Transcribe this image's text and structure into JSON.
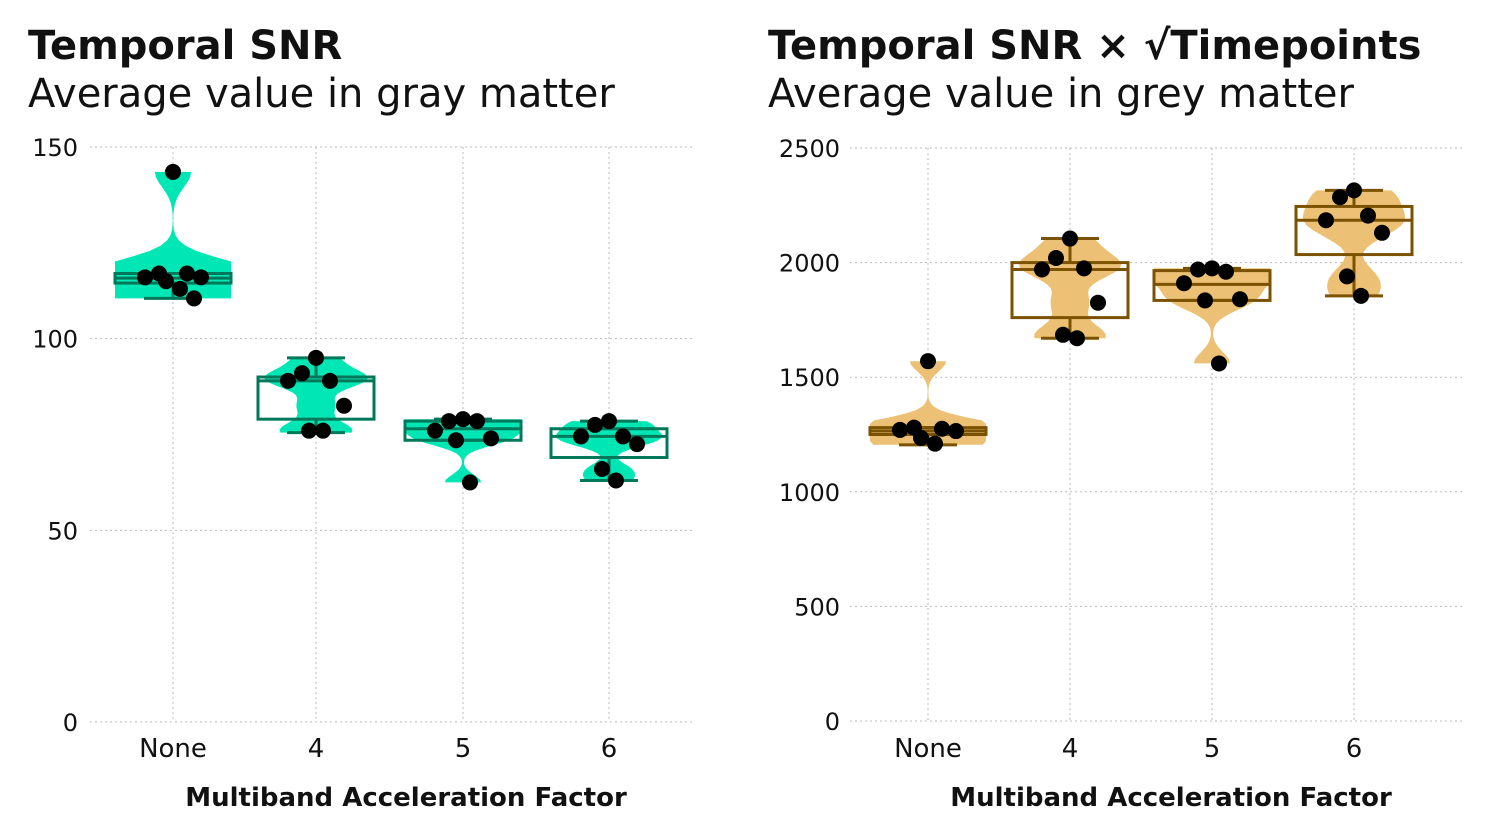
{
  "charts": [
    {
      "title": "Temporal SNR",
      "subtitle": "Average value in gray matter",
      "colors": {
        "violin": "#00e6b4",
        "box": "#00785a",
        "point": "#000000"
      }
    },
    {
      "title": "Temporal SNR × √Timepoints",
      "subtitle": "Average value in grey matter",
      "colors": {
        "violin": "#ecc175",
        "box": "#7a5200",
        "point": "#000000"
      }
    }
  ],
  "chart_data": [
    {
      "type": "violin+box+scatter",
      "title": "Temporal SNR",
      "subtitle": "Average value in gray matter",
      "xlabel": "Multiband Acceleration Factor",
      "ylabel": "",
      "categories": [
        "None",
        "4",
        "5",
        "6"
      ],
      "ylim": [
        0,
        150
      ],
      "yticks": [
        0,
        50,
        100,
        150
      ],
      "grid": true,
      "groups": [
        {
          "category": "None",
          "points": [
            143.5,
            117,
            117,
            116,
            116,
            115,
            113,
            110.5
          ],
          "box": {
            "min": 110.5,
            "q1": 114.5,
            "median": 115.8,
            "q3": 117,
            "max": 117
          },
          "violin_range": [
            110.5,
            143.5
          ]
        },
        {
          "category": "4",
          "points": [
            95,
            91,
            89,
            89,
            82.5,
            76,
            76
          ],
          "box": {
            "min": 75.5,
            "q1": 79,
            "median": 89,
            "q3": 90,
            "max": 95
          },
          "violin_range": [
            75.5,
            95
          ]
        },
        {
          "category": "5",
          "points": [
            79,
            78.5,
            78.5,
            76,
            74,
            73.5,
            62.5
          ],
          "box": {
            "min": 73.5,
            "q1": 73.5,
            "median": 76.5,
            "q3": 78.5,
            "max": 79
          },
          "violin_range": [
            62.5,
            79
          ]
        },
        {
          "category": "6",
          "points": [
            78.5,
            77.5,
            74.5,
            74.5,
            72.5,
            66,
            63
          ],
          "box": {
            "min": 63,
            "q1": 69,
            "median": 74.5,
            "q3": 76.5,
            "max": 78.5
          },
          "violin_range": [
            63,
            78.5
          ]
        }
      ]
    },
    {
      "type": "violin+box+scatter",
      "title": "Temporal SNR × √Timepoints",
      "subtitle": "Average value in grey matter",
      "xlabel": "Multiband Acceleration Factor",
      "ylabel": "",
      "categories": [
        "None",
        "4",
        "5",
        "6"
      ],
      "ylim": [
        0,
        2500
      ],
      "yticks": [
        0,
        500,
        1000,
        1500,
        2000,
        2500
      ],
      "grid": true,
      "groups": [
        {
          "category": "None",
          "points": [
            1570,
            1280,
            1275,
            1270,
            1265,
            1235,
            1210
          ],
          "box": {
            "min": 1205,
            "q1": 1250,
            "median": 1265,
            "q3": 1280,
            "max": 1280
          },
          "violin_range": [
            1205,
            1570
          ]
        },
        {
          "category": "4",
          "points": [
            2105,
            2020,
            1975,
            1970,
            1825,
            1685,
            1670
          ],
          "box": {
            "min": 1670,
            "q1": 1760,
            "median": 1970,
            "q3": 2000,
            "max": 2105
          },
          "violin_range": [
            1670,
            2105
          ]
        },
        {
          "category": "5",
          "points": [
            1975,
            1970,
            1960,
            1910,
            1840,
            1835,
            1560
          ],
          "box": {
            "min": 1835,
            "q1": 1835,
            "median": 1905,
            "q3": 1965,
            "max": 1975
          },
          "violin_range": [
            1560,
            1975
          ]
        },
        {
          "category": "6",
          "points": [
            2315,
            2285,
            2205,
            2185,
            2130,
            1940,
            1855
          ],
          "box": {
            "min": 1855,
            "q1": 2035,
            "median": 2185,
            "q3": 2245,
            "max": 2315
          },
          "violin_range": [
            1855,
            2315
          ]
        }
      ]
    }
  ]
}
